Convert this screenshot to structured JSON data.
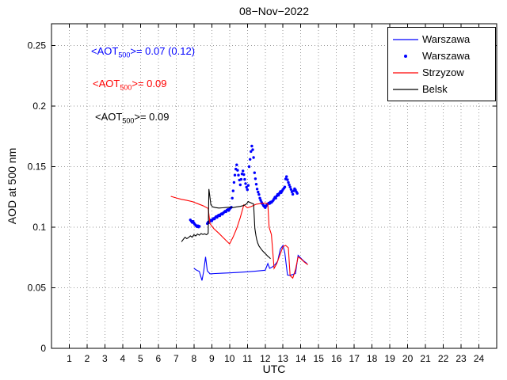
{
  "annotations": [
    {
      "prefix": "<AOT",
      "sub": "500",
      "suffix": ">= 0.07 (0.12)",
      "color": "#0000ff"
    },
    {
      "prefix": "<AOT",
      "sub": "500",
      "suffix": ">= 0.09",
      "color": "#ff0000"
    },
    {
      "prefix": "<AOT",
      "sub": "500",
      "suffix": ">= 0.09",
      "color": "#000000"
    }
  ],
  "legend": {
    "items": [
      {
        "label": "Warszawa",
        "color": "#0000ff",
        "marker": "line"
      },
      {
        "label": "Warszawa",
        "color": "#0000ff",
        "marker": "dot"
      },
      {
        "label": "Strzyzow",
        "color": "#ff0000",
        "marker": "line"
      },
      {
        "label": "Belsk",
        "color": "#000000",
        "marker": "line"
      }
    ]
  },
  "chart_data": {
    "type": "line",
    "title": "08−Nov−2022",
    "xlabel": "UTC",
    "ylabel": "AOD at 500 nm",
    "xlim": [
      0,
      25
    ],
    "ylim": [
      0,
      0.268
    ],
    "xticks": [
      1,
      2,
      3,
      4,
      5,
      6,
      7,
      8,
      9,
      10,
      11,
      12,
      13,
      14,
      15,
      16,
      17,
      18,
      19,
      20,
      21,
      22,
      23,
      24
    ],
    "yticks": [
      0,
      0.05,
      0.1,
      0.15,
      0.2,
      0.25
    ],
    "ytick_labels": [
      "0",
      "0.05",
      "0.1",
      "0.15",
      "0.2",
      "0.25"
    ],
    "grid": true,
    "legend_position": "top-right",
    "series": [
      {
        "name": "Warszawa",
        "style": "line",
        "color": "#0000ff",
        "x": [
          8.0,
          8.15,
          8.3,
          8.45,
          8.55,
          8.65,
          8.75,
          8.9,
          9.2,
          9.6,
          10.0,
          10.5,
          11.0,
          11.5,
          12.0,
          12.15,
          12.25,
          12.4,
          12.55,
          12.7,
          12.85,
          13.0,
          13.1,
          13.25,
          13.4,
          13.55,
          13.7,
          13.85,
          14.0,
          14.15,
          14.35
        ],
        "y": [
          0.066,
          0.0645,
          0.0635,
          0.056,
          0.064,
          0.0755,
          0.064,
          0.0615,
          0.0618,
          0.062,
          0.0623,
          0.0627,
          0.0632,
          0.0638,
          0.0645,
          0.07,
          0.066,
          0.0672,
          0.069,
          0.072,
          0.082,
          0.085,
          0.079,
          0.0605,
          0.0603,
          0.061,
          0.0618,
          0.0768,
          0.0745,
          0.0722,
          0.07
        ]
      },
      {
        "name": "Warszawa",
        "style": "scatter",
        "color": "#0000ff",
        "x": [
          7.8,
          7.85,
          7.9,
          7.95,
          8.0,
          8.04,
          8.09,
          8.13,
          8.17,
          8.22,
          8.26,
          8.3,
          8.75,
          8.8,
          8.85,
          8.9,
          8.95,
          9.0,
          9.05,
          9.1,
          9.15,
          9.2,
          9.25,
          9.3,
          9.35,
          9.4,
          9.45,
          9.5,
          9.55,
          9.6,
          9.65,
          9.7,
          9.75,
          9.8,
          9.85,
          9.9,
          9.95,
          10.0,
          10.05,
          10.1,
          10.15,
          10.2,
          10.25,
          10.3,
          10.35,
          10.4,
          10.45,
          10.5,
          10.55,
          10.6,
          10.65,
          10.7,
          10.75,
          10.8,
          10.85,
          10.9,
          10.95,
          11.0,
          11.05,
          11.1,
          11.15,
          11.2,
          11.25,
          11.3,
          11.35,
          11.4,
          11.45,
          11.5,
          11.55,
          11.6,
          11.65,
          11.7,
          11.75,
          11.8,
          11.85,
          11.9,
          11.95,
          12.0,
          12.05,
          12.1,
          12.15,
          12.2,
          12.25,
          12.3,
          12.35,
          12.4,
          12.45,
          12.5,
          12.55,
          12.6,
          12.65,
          12.7,
          12.75,
          12.8,
          12.85,
          12.9,
          12.95,
          13.0,
          13.05,
          13.1,
          13.15,
          13.2,
          13.25,
          13.3,
          13.35,
          13.4,
          13.45,
          13.5,
          13.55,
          13.6,
          13.65,
          13.7,
          13.75,
          13.8
        ],
        "y": [
          0.106,
          0.105,
          0.104,
          0.1048,
          0.1035,
          0.1025,
          0.1018,
          0.101,
          0.1005,
          0.1012,
          0.1002,
          0.1008,
          0.103,
          0.1042,
          0.1038,
          0.105,
          0.1058,
          0.1052,
          0.1065,
          0.1072,
          0.1068,
          0.108,
          0.1088,
          0.1082,
          0.1095,
          0.11,
          0.1094,
          0.1106,
          0.1112,
          0.1108,
          0.1118,
          0.1125,
          0.1132,
          0.1128,
          0.114,
          0.1146,
          0.1138,
          0.115,
          0.1158,
          0.1165,
          0.124,
          0.13,
          0.137,
          0.143,
          0.148,
          0.1515,
          0.147,
          0.143,
          0.139,
          0.135,
          0.1395,
          0.144,
          0.1465,
          0.1435,
          0.1395,
          0.136,
          0.133,
          0.131,
          0.1345,
          0.15,
          0.156,
          0.1625,
          0.167,
          0.164,
          0.1575,
          0.145,
          0.14,
          0.1355,
          0.1315,
          0.129,
          0.127,
          0.124,
          0.1222,
          0.1205,
          0.1192,
          0.118,
          0.1172,
          0.1162,
          0.1175,
          0.1185,
          0.1192,
          0.12,
          0.1196,
          0.1208,
          0.1204,
          0.1214,
          0.1222,
          0.1235,
          0.1248,
          0.124,
          0.1258,
          0.1272,
          0.1264,
          0.128,
          0.1294,
          0.1286,
          0.13,
          0.1312,
          0.1322,
          0.1332,
          0.1398,
          0.1418,
          0.1392,
          0.137,
          0.135,
          0.1332,
          0.1312,
          0.1292,
          0.1272,
          0.13,
          0.1318,
          0.1308,
          0.1292,
          0.128
        ]
      },
      {
        "name": "Strzyzow",
        "style": "line",
        "color": "#ff0000",
        "x": [
          6.7,
          7.0,
          7.3,
          7.6,
          7.9,
          8.2,
          8.5,
          8.8,
          8.9,
          9.1,
          9.4,
          9.7,
          10.0,
          10.2,
          10.4,
          10.6,
          10.8,
          11.0,
          11.2,
          11.5,
          11.8,
          12.0,
          12.15,
          12.22,
          12.35,
          12.5,
          12.65,
          12.8,
          13.0,
          13.15,
          13.3,
          13.4,
          13.55,
          13.7,
          13.85,
          14.0,
          14.2,
          14.4
        ],
        "y": [
          0.1255,
          0.1242,
          0.123,
          0.1222,
          0.1212,
          0.1195,
          0.1178,
          0.1155,
          0.103,
          0.099,
          0.095,
          0.0905,
          0.0862,
          0.092,
          0.099,
          0.108,
          0.1185,
          0.116,
          0.117,
          0.119,
          0.1196,
          0.12,
          0.1192,
          0.1,
          0.094,
          0.066,
          0.07,
          0.076,
          0.084,
          0.085,
          0.083,
          0.06,
          0.058,
          0.065,
          0.0755,
          0.074,
          0.0712,
          0.069
        ]
      },
      {
        "name": "Belsk",
        "style": "line",
        "color": "#000000",
        "x": [
          7.3,
          7.4,
          7.5,
          7.6,
          7.7,
          7.8,
          7.9,
          8.0,
          8.1,
          8.2,
          8.3,
          8.4,
          8.5,
          8.6,
          8.7,
          8.8,
          8.84,
          8.88,
          8.95,
          9.05,
          9.2,
          9.4,
          9.6,
          9.8,
          10.0,
          10.2,
          10.4,
          10.6,
          10.8,
          10.95,
          11.05,
          11.15,
          11.25,
          11.35,
          11.42,
          11.48,
          11.52,
          11.58,
          11.65,
          11.75,
          11.85,
          11.95,
          12.05,
          12.15,
          12.25,
          12.3
        ],
        "y": [
          0.088,
          0.09,
          0.0918,
          0.0905,
          0.0915,
          0.0928,
          0.0918,
          0.0938,
          0.0928,
          0.0944,
          0.0934,
          0.0948,
          0.094,
          0.0945,
          0.0938,
          0.095,
          0.1315,
          0.127,
          0.1185,
          0.1168,
          0.1162,
          0.1158,
          0.116,
          0.1163,
          0.1165,
          0.1162,
          0.1168,
          0.1172,
          0.118,
          0.1192,
          0.1212,
          0.1205,
          0.1198,
          0.1192,
          0.099,
          0.093,
          0.09,
          0.087,
          0.0845,
          0.0825,
          0.0805,
          0.079,
          0.0775,
          0.076,
          0.0748,
          0.074
        ]
      }
    ]
  }
}
